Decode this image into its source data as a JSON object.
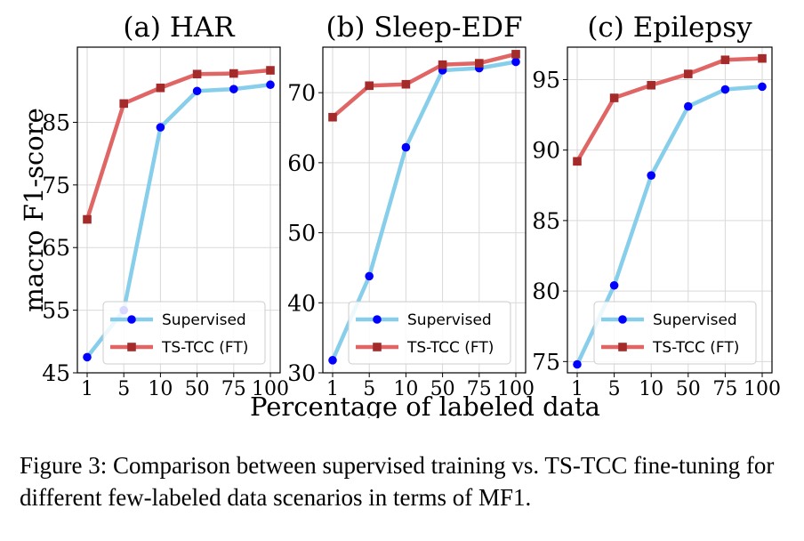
{
  "ylabel": "macro F1-score",
  "xlabel": "Percentage of labeled data",
  "caption": "Figure 3: Comparison between supervised training vs. TS-TCC fine-tuning for different few-labeled data scenarios in terms of MF1.",
  "colors": {
    "supervised": "#87ceeb",
    "supervised_marker": "#0000ff",
    "tstcc": "#e06666",
    "tstcc_marker": "#a52a2a"
  },
  "chart_data": [
    {
      "type": "line",
      "title": "(a) HAR",
      "categories": [
        "1",
        "5",
        "10",
        "50",
        "75",
        "100"
      ],
      "ylim": [
        45,
        97
      ],
      "yticks": [
        "45",
        "55",
        "65",
        "75",
        "85"
      ],
      "grid": true,
      "legend": "lower-center",
      "series": [
        {
          "name": "Supervised",
          "values": [
            47.5,
            55.0,
            84.2,
            90.0,
            90.3,
            91.0
          ]
        },
        {
          "name": "TS-TCC (FT)",
          "values": [
            69.5,
            88.0,
            90.5,
            92.7,
            92.8,
            93.3
          ]
        }
      ]
    },
    {
      "type": "line",
      "title": "(b) Sleep-EDF",
      "categories": [
        "1",
        "5",
        "10",
        "50",
        "75",
        "100"
      ],
      "ylim": [
        30,
        76.5
      ],
      "yticks": [
        "30",
        "40",
        "50",
        "60",
        "70"
      ],
      "grid": true,
      "legend": "lower-center",
      "series": [
        {
          "name": "Supervised",
          "values": [
            31.8,
            43.8,
            62.2,
            73.2,
            73.5,
            74.4
          ]
        },
        {
          "name": "TS-TCC (FT)",
          "values": [
            66.5,
            71.0,
            71.2,
            74.0,
            74.2,
            75.5
          ]
        }
      ]
    },
    {
      "type": "line",
      "title": "(c) Epilepsy",
      "categories": [
        "1",
        "5",
        "10",
        "50",
        "75",
        "100"
      ],
      "ylim": [
        74.2,
        97.3
      ],
      "yticks": [
        "75",
        "80",
        "85",
        "90",
        "95"
      ],
      "grid": true,
      "legend": "lower-center",
      "series": [
        {
          "name": "Supervised",
          "values": [
            74.8,
            80.4,
            88.2,
            93.1,
            94.3,
            94.5
          ]
        },
        {
          "name": "TS-TCC (FT)",
          "values": [
            89.2,
            93.7,
            94.6,
            95.4,
            96.4,
            96.5
          ]
        }
      ]
    }
  ]
}
